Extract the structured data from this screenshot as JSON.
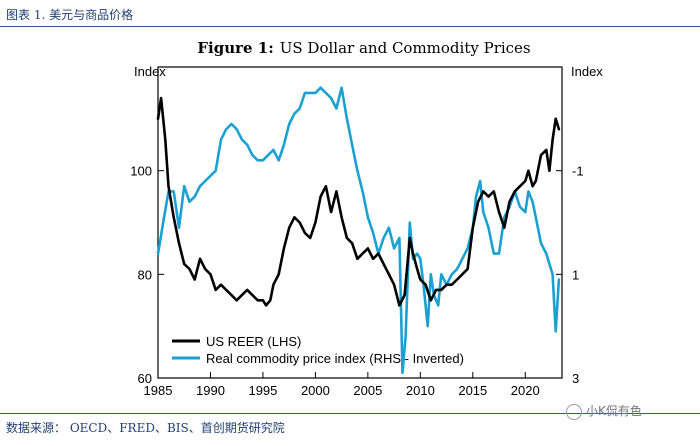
{
  "header": {
    "caption": "图表 1. 美元与商品价格"
  },
  "footer": {
    "source": "数据来源： OECD、FRED、BIS、首创期货研究院"
  },
  "watermark": {
    "text": "小K侃有色",
    "icon": "wechat-icon"
  },
  "chart_data": {
    "type": "line",
    "title_prefix": "Figure 1:",
    "title": "US Dollar and Commodity Prices",
    "left_axis_label": "Index",
    "right_axis_label": "Index",
    "xlim": [
      1985,
      2023.5
    ],
    "ylim_left": [
      60,
      120
    ],
    "ylim_right": [
      3,
      -3
    ],
    "x_ticks": [
      1985,
      1990,
      1995,
      2000,
      2005,
      2010,
      2015,
      2020
    ],
    "x_tick_labels": [
      "1985",
      "1990",
      "1995",
      "2000",
      "2005",
      "2010",
      "2015",
      "2020"
    ],
    "left_ticks": [
      60,
      80,
      100
    ],
    "left_tick_labels": [
      "60",
      "80",
      "100"
    ],
    "right_ticks": [
      3,
      1,
      -1
    ],
    "right_tick_labels": [
      "3",
      "1",
      "-1"
    ],
    "legend": [
      "US REER (LHS)",
      "Real commodity price index (RHS - Inverted)"
    ],
    "series": [
      {
        "name": "US REER (LHS)",
        "axis": "left",
        "color": "#000000",
        "x": [
          1985.0,
          1985.3,
          1985.7,
          1986.0,
          1986.5,
          1987.0,
          1987.5,
          1988.0,
          1988.5,
          1989.0,
          1989.5,
          1990.0,
          1990.5,
          1991.0,
          1991.5,
          1992.0,
          1992.5,
          1993.0,
          1993.5,
          1994.0,
          1994.5,
          1995.0,
          1995.3,
          1995.7,
          1996.0,
          1996.5,
          1997.0,
          1997.5,
          1998.0,
          1998.5,
          1999.0,
          1999.5,
          2000.0,
          2000.5,
          2001.0,
          2001.5,
          2002.0,
          2002.5,
          2003.0,
          2003.5,
          2004.0,
          2004.5,
          2005.0,
          2005.5,
          2006.0,
          2006.5,
          2007.0,
          2007.5,
          2008.0,
          2008.5,
          2009.0,
          2009.3,
          2009.7,
          2010.0,
          2010.5,
          2011.0,
          2011.5,
          2012.0,
          2012.5,
          2013.0,
          2013.5,
          2014.0,
          2014.5,
          2015.0,
          2015.5,
          2016.0,
          2016.5,
          2017.0,
          2017.5,
          2018.0,
          2018.5,
          2019.0,
          2019.5,
          2020.0,
          2020.3,
          2020.7,
          2021.0,
          2021.5,
          2022.0,
          2022.3,
          2022.6,
          2022.9,
          2023.2
        ],
        "values": [
          110,
          114,
          106,
          97,
          91,
          86,
          82,
          81,
          79,
          83,
          81,
          80,
          77,
          78,
          77,
          76,
          75,
          76,
          77,
          76,
          75,
          75,
          74,
          75,
          78,
          80,
          85,
          89,
          91,
          90,
          88,
          87,
          90,
          95,
          97,
          92,
          96,
          91,
          87,
          86,
          83,
          84,
          85,
          83,
          84,
          82,
          80,
          78,
          74,
          76,
          87,
          84,
          81,
          79,
          78,
          75,
          77,
          77,
          78,
          78,
          79,
          80,
          81,
          89,
          94,
          96,
          95,
          96,
          92,
          89,
          94,
          96,
          97,
          98,
          100,
          97,
          98,
          103,
          104,
          100,
          106,
          110,
          108
        ]
      },
      {
        "name": "Real commodity price index (RHS - Inverted)",
        "axis": "right",
        "color": "#1aa1d2",
        "x": [
          1985.0,
          1985.5,
          1986.0,
          1986.5,
          1987.0,
          1987.5,
          1988.0,
          1988.5,
          1989.0,
          1989.5,
          1990.0,
          1990.5,
          1991.0,
          1991.5,
          1992.0,
          1992.5,
          1993.0,
          1993.5,
          1994.0,
          1994.5,
          1995.0,
          1995.5,
          1996.0,
          1996.5,
          1997.0,
          1997.5,
          1998.0,
          1998.5,
          1999.0,
          1999.5,
          2000.0,
          2000.5,
          2001.0,
          2001.5,
          2002.0,
          2002.5,
          2003.0,
          2003.5,
          2004.0,
          2004.5,
          2005.0,
          2005.5,
          2006.0,
          2006.5,
          2007.0,
          2007.5,
          2008.0,
          2008.3,
          2008.6,
          2009.0,
          2009.3,
          2009.7,
          2010.0,
          2010.3,
          2010.7,
          2011.0,
          2011.3,
          2011.7,
          2012.0,
          2012.5,
          2013.0,
          2013.5,
          2014.0,
          2014.5,
          2015.0,
          2015.3,
          2015.7,
          2016.0,
          2016.5,
          2017.0,
          2017.5,
          2018.0,
          2018.5,
          2019.0,
          2019.5,
          2020.0,
          2020.3,
          2020.7,
          2021.0,
          2021.5,
          2022.0,
          2022.3,
          2022.6,
          2022.9,
          2023.2
        ],
        "values": [
          0.6,
          0.0,
          -0.6,
          -0.6,
          0.1,
          -0.7,
          -0.4,
          -0.5,
          -0.7,
          -0.8,
          -0.9,
          -1.0,
          -1.6,
          -1.8,
          -1.9,
          -1.8,
          -1.6,
          -1.5,
          -1.3,
          -1.2,
          -1.2,
          -1.3,
          -1.4,
          -1.2,
          -1.5,
          -1.9,
          -2.1,
          -2.2,
          -2.5,
          -2.5,
          -2.5,
          -2.6,
          -2.5,
          -2.4,
          -2.2,
          -2.6,
          -2.0,
          -1.5,
          -1.0,
          -0.6,
          -0.1,
          0.2,
          0.6,
          0.3,
          0.1,
          0.5,
          0.3,
          2.9,
          2.2,
          0.0,
          0.7,
          0.6,
          0.7,
          1.2,
          2.0,
          1.0,
          1.4,
          1.6,
          1.0,
          1.2,
          1.0,
          0.9,
          0.7,
          0.5,
          0.1,
          -0.5,
          -0.8,
          -0.2,
          0.1,
          0.6,
          0.6,
          -0.1,
          -0.3,
          -0.6,
          -0.3,
          -0.2,
          -0.6,
          -0.4,
          -0.1,
          0.4,
          0.6,
          0.8,
          1.0,
          2.1,
          1.1
        ]
      }
    ]
  }
}
